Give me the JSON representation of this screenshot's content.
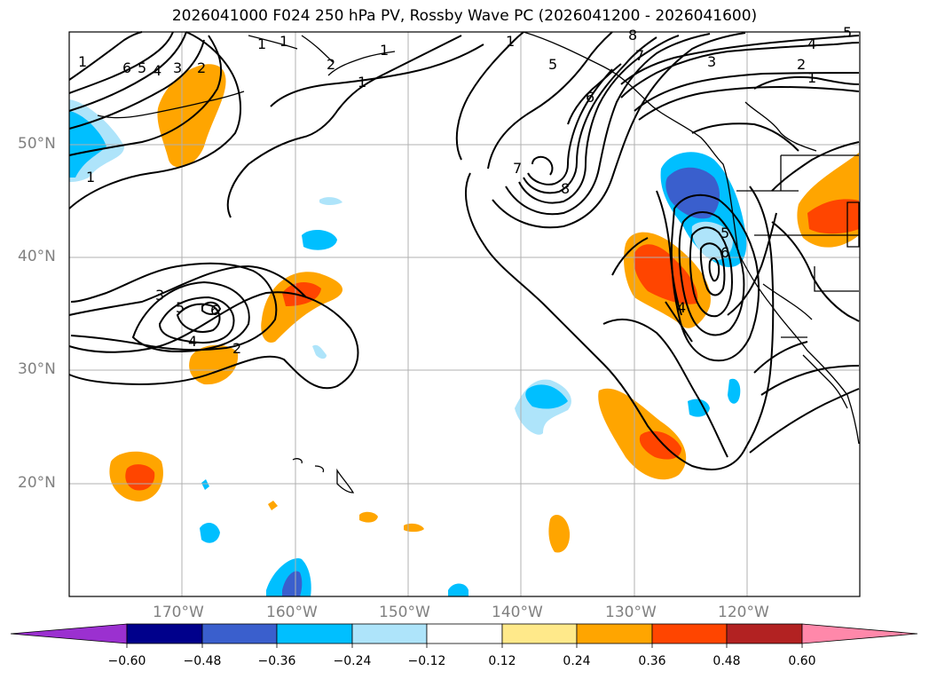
{
  "title": "2026041000 F024 250 hPa PV, Rossby Wave PC (2026041200 - 2026041600)",
  "axes": {
    "lat_labels": [
      "50°N",
      "40°N",
      "30°N",
      "20°N"
    ],
    "lon_labels": [
      "170°W",
      "160°W",
      "150°W",
      "140°W",
      "130°W",
      "120°W"
    ]
  },
  "chart_data": {
    "type": "heatmap",
    "description_fields": "filled anomaly contours with black PV contour lines",
    "pv_contour_levels": [
      1,
      2,
      3,
      4,
      5,
      6,
      7,
      8
    ],
    "colorbar": {
      "ticks": [
        "−0.60",
        "−0.48",
        "−0.36",
        "−0.24",
        "−0.12",
        "0.12",
        "0.24",
        "0.36",
        "0.48",
        "0.60"
      ],
      "colors": [
        "#9b30d0",
        "#00008b",
        "#3a5fcd",
        "#00bfff",
        "#aee4fa",
        "#ffffff",
        "#ffe98a",
        "#ffa500",
        "#ff4500",
        "#b22222",
        "#ff88aa"
      ]
    }
  }
}
